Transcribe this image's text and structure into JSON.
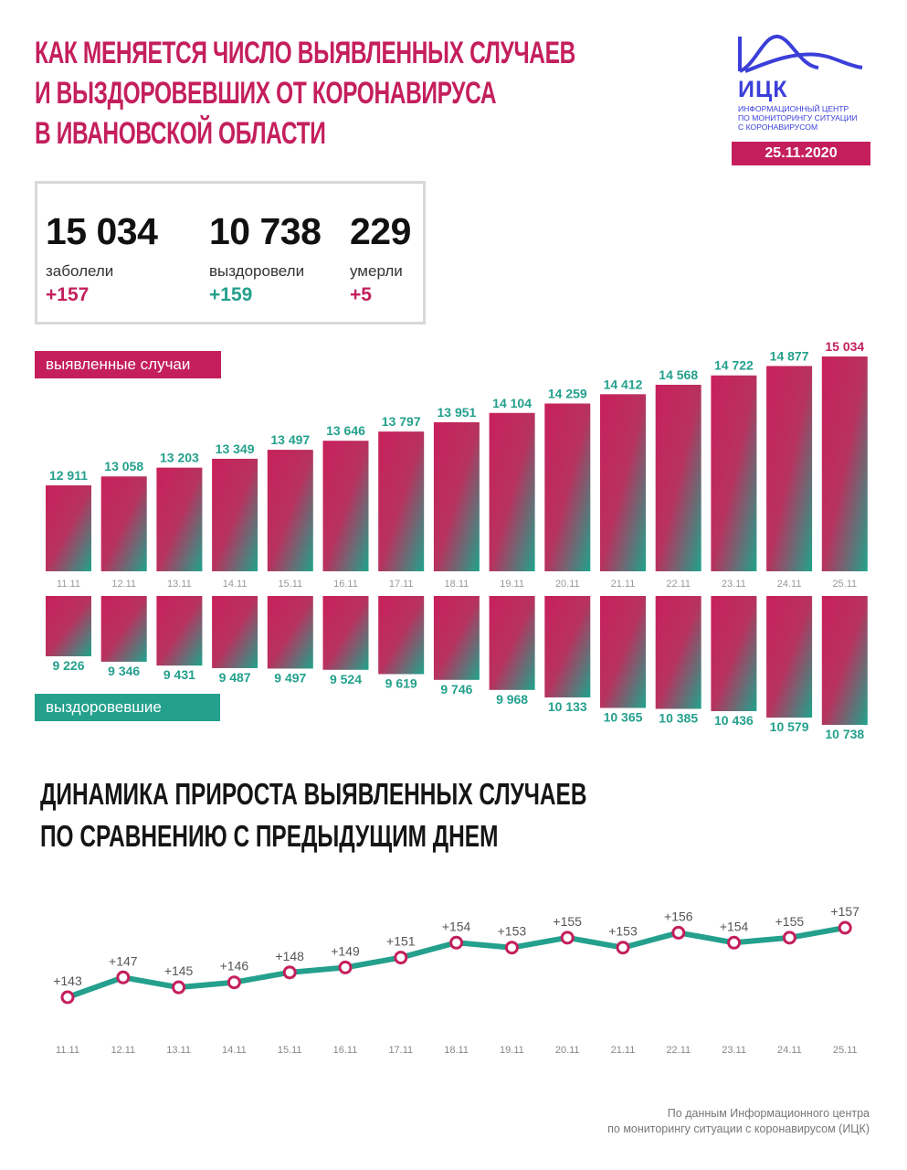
{
  "header": {
    "title_lines": [
      "Как меняется число выявленных случаев",
      "и выздоровевших от коронавируса",
      "в Ивановской области"
    ],
    "logo": {
      "abbr": "ИЦК",
      "text_lines": [
        "Информационный центр",
        "по мониторингу ситуации",
        "с коронавирусом"
      ],
      "icon": "mountain-wave-logo-icon"
    },
    "date": "25.11.2020"
  },
  "summary": {
    "cases": {
      "value": "15 034",
      "label": "заболели",
      "delta": "+157"
    },
    "recovered": {
      "value": "10 738",
      "label": "выздоровели",
      "delta": "+159"
    },
    "deaths": {
      "value": "229",
      "label": "умерли",
      "delta": "+5"
    }
  },
  "labels": {
    "cases_tag": "выявленные случаи",
    "recovered_tag": "выздоровевшие"
  },
  "second_title_lines": [
    "Динамика прироста выявленных случаев",
    "по сравнению с предыдущим днем"
  ],
  "source_lines": [
    "По данным Информационного центра",
    "по мониторингу ситуации с коронавирусом (ИЦК)"
  ],
  "colors": {
    "crimson": "#c41f5c",
    "teal": "#24a08d",
    "logo_blue": "#3b3fd9"
  },
  "chart_data": [
    {
      "type": "bar",
      "categories": [
        "11.11",
        "12.11",
        "13.11",
        "14.11",
        "15.11",
        "16.11",
        "17.11",
        "18.11",
        "19.11",
        "20.11",
        "21.11",
        "22.11",
        "23.11",
        "24.11",
        "25.11"
      ],
      "series": [
        {
          "name": "выявленные случаи",
          "values": [
            12911,
            13058,
            13203,
            13349,
            13497,
            13646,
            13797,
            13951,
            14104,
            14259,
            14412,
            14568,
            14722,
            14877,
            15034
          ],
          "labels": [
            "12 911",
            "13 058",
            "13 203",
            "13 349",
            "13 497",
            "13 646",
            "13 797",
            "13 951",
            "14 104",
            "14 259",
            "14 412",
            "14 568",
            "14 722",
            "14 877",
            "15 034"
          ]
        },
        {
          "name": "выздоровевшие",
          "values": [
            9226,
            9346,
            9431,
            9487,
            9497,
            9524,
            9619,
            9746,
            9968,
            10133,
            10365,
            10385,
            10436,
            10579,
            10738
          ],
          "labels": [
            "9 226",
            "9 346",
            "9 431",
            "9 487",
            "9 497",
            "9 524",
            "9 619",
            "9 746",
            "9 968",
            "10 133",
            "10 365",
            "10 385",
            "10 436",
            "10 579",
            "10 738"
          ]
        }
      ]
    },
    {
      "type": "line",
      "categories": [
        "11.11",
        "12.11",
        "13.11",
        "14.11",
        "15.11",
        "16.11",
        "17.11",
        "18.11",
        "19.11",
        "20.11",
        "21.11",
        "22.11",
        "23.11",
        "24.11",
        "25.11"
      ],
      "values": [
        143,
        147,
        145,
        146,
        148,
        149,
        151,
        154,
        153,
        155,
        153,
        156,
        154,
        155,
        157
      ],
      "labels": [
        "+143",
        "+147",
        "+145",
        "+146",
        "+148",
        "+149",
        "+151",
        "+154",
        "+153",
        "+155",
        "+153",
        "+156",
        "+154",
        "+155",
        "+157"
      ]
    }
  ]
}
